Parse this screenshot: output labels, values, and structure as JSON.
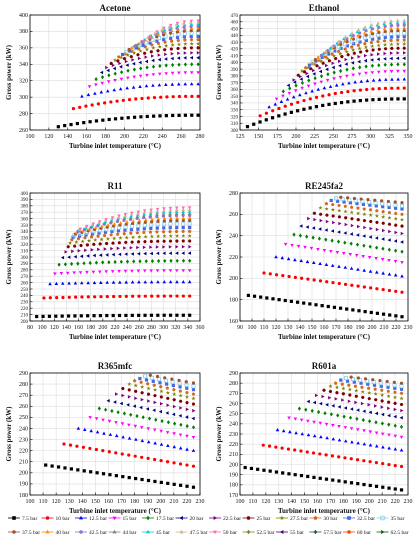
{
  "figure": {
    "xlabel": "Turbine inlet temperature (°C)",
    "ylabel": "Gross power (kW)"
  },
  "legend": {
    "entries": [
      {
        "label": "7.5 bar",
        "color": "#000000",
        "marker": "square"
      },
      {
        "label": "10 bar",
        "color": "#ff0000",
        "marker": "circle"
      },
      {
        "label": "12.5 bar",
        "color": "#0000ff",
        "marker": "triangle-up"
      },
      {
        "label": "15 bar",
        "color": "#ff00ff",
        "marker": "triangle-down"
      },
      {
        "label": "17.5 bar",
        "color": "#008000",
        "marker": "diamond"
      },
      {
        "label": "20 bar",
        "color": "#000080",
        "marker": "triangle-left"
      },
      {
        "label": "22.5 bar",
        "color": "#800080",
        "marker": "triangle-right"
      },
      {
        "label": "25 bar",
        "color": "#800000",
        "marker": "hexagon"
      },
      {
        "label": "27.5 bar",
        "color": "#808000",
        "marker": "star"
      },
      {
        "label": "30 bar",
        "color": "#d2691e",
        "marker": "pentagon"
      },
      {
        "label": "32.5 bar",
        "color": "#4169e1",
        "marker": "square"
      },
      {
        "label": "35 bar",
        "color": "#87ceeb",
        "marker": "square-open"
      },
      {
        "label": "37.5 bar",
        "color": "#a0522d",
        "marker": "circle"
      },
      {
        "label": "40 bar",
        "color": "#ff8c00",
        "marker": "triangle-up"
      },
      {
        "label": "42.5 bar",
        "color": "#9370db",
        "marker": "circle"
      },
      {
        "label": "44 bar",
        "color": "#808080",
        "marker": "triangle-up"
      },
      {
        "label": "45 bar",
        "color": "#00ced1",
        "marker": "triangle-up"
      },
      {
        "label": "47.5 bar",
        "color": "#d2b48c",
        "marker": "triangle-up"
      },
      {
        "label": "50 bar",
        "color": "#ff69b4",
        "marker": "triangle-down"
      },
      {
        "label": "52.5 bar",
        "color": "#6b8e23",
        "marker": "diamond"
      },
      {
        "label": "55 bar",
        "color": "#4b0082",
        "marker": "triangle-left"
      },
      {
        "label": "57.5 bar",
        "color": "#2f4f4f",
        "marker": "diamond"
      },
      {
        "label": "60 bar",
        "color": "#ff4500",
        "marker": "circle"
      },
      {
        "label": "62.5 bar",
        "color": "#006400",
        "marker": "triangle-right"
      }
    ]
  },
  "chart_data": [
    {
      "type": "scatter",
      "title": "Acetone",
      "xlabel": "Turbine inlet temperature (°C)",
      "ylabel": "Gross power (kW)",
      "xlim": [
        100,
        280
      ],
      "ylim": [
        260,
        400
      ],
      "xticks": [
        100,
        120,
        140,
        160,
        180,
        200,
        220,
        240,
        260,
        280
      ],
      "yticks": [
        260,
        280,
        300,
        320,
        340,
        360,
        380,
        400
      ],
      "series": [
        {
          "name": "7.5 bar",
          "x0": 130,
          "x1": 278,
          "y0": 264,
          "y1": 278
        },
        {
          "name": "10 bar",
          "x0": 146,
          "x1": 278,
          "y0": 286,
          "y1": 301
        },
        {
          "name": "12.5 bar",
          "x0": 155,
          "x1": 278,
          "y0": 301,
          "y1": 316
        },
        {
          "name": "15 bar",
          "x0": 163,
          "x1": 278,
          "y0": 313,
          "y1": 330
        },
        {
          "name": "17.5 bar",
          "x0": 170,
          "x1": 278,
          "y0": 322,
          "y1": 340
        },
        {
          "name": "20 bar",
          "x0": 176,
          "x1": 278,
          "y0": 330,
          "y1": 348
        },
        {
          "name": "22.5 bar",
          "x0": 181,
          "x1": 278,
          "y0": 336,
          "y1": 354
        },
        {
          "name": "25 bar",
          "x0": 186,
          "x1": 278,
          "y0": 341,
          "y1": 360
        },
        {
          "name": "27.5 bar",
          "x0": 190,
          "x1": 278,
          "y0": 345,
          "y1": 365
        },
        {
          "name": "30 bar",
          "x0": 194,
          "x1": 278,
          "y0": 349,
          "y1": 370
        },
        {
          "name": "32.5 bar",
          "x0": 198,
          "x1": 278,
          "y0": 352,
          "y1": 374
        },
        {
          "name": "35 bar",
          "x0": 202,
          "x1": 278,
          "y0": 355,
          "y1": 378
        },
        {
          "name": "37.5 bar",
          "x0": 205,
          "x1": 278,
          "y0": 358,
          "y1": 381
        },
        {
          "name": "40 bar",
          "x0": 208,
          "x1": 278,
          "y0": 360,
          "y1": 384
        },
        {
          "name": "42.5 bar",
          "x0": 211,
          "x1": 278,
          "y0": 362,
          "y1": 386
        },
        {
          "name": "45 bar",
          "x0": 214,
          "x1": 278,
          "y0": 364,
          "y1": 389
        },
        {
          "name": "47.5 bar",
          "x0": 217,
          "x1": 278,
          "y0": 366,
          "y1": 391
        },
        {
          "name": "50 bar",
          "x0": 220,
          "x1": 278,
          "y0": 368,
          "y1": 393
        }
      ]
    },
    {
      "type": "scatter",
      "title": "Ethanol",
      "xlabel": "Turbine inlet temperature (°C)",
      "ylabel": "Gross power (kW)",
      "xlim": [
        125,
        350
      ],
      "ylim": [
        300,
        470
      ],
      "xticks": [
        125,
        150,
        175,
        200,
        225,
        250,
        275,
        300,
        325,
        350
      ],
      "yticks": [
        300,
        310,
        320,
        330,
        340,
        350,
        360,
        370,
        380,
        390,
        400,
        410,
        420,
        430,
        440,
        450,
        460,
        470
      ],
      "series": [
        {
          "name": "7.5 bar",
          "x0": 135,
          "x1": 345,
          "y0": 305,
          "y1": 346
        },
        {
          "name": "10 bar",
          "x0": 152,
          "x1": 345,
          "y0": 321,
          "y1": 362
        },
        {
          "name": "12.5 bar",
          "x0": 164,
          "x1": 345,
          "y0": 334,
          "y1": 375
        },
        {
          "name": "15 bar",
          "x0": 174,
          "x1": 345,
          "y0": 346,
          "y1": 387
        },
        {
          "name": "17.5 bar",
          "x0": 183,
          "x1": 345,
          "y0": 357,
          "y1": 397
        },
        {
          "name": "20 bar",
          "x0": 190,
          "x1": 345,
          "y0": 366,
          "y1": 406
        },
        {
          "name": "22.5 bar",
          "x0": 197,
          "x1": 345,
          "y0": 374,
          "y1": 414
        },
        {
          "name": "25 bar",
          "x0": 203,
          "x1": 345,
          "y0": 381,
          "y1": 421
        },
        {
          "name": "27.5 bar",
          "x0": 208,
          "x1": 345,
          "y0": 387,
          "y1": 427
        },
        {
          "name": "30 bar",
          "x0": 213,
          "x1": 345,
          "y0": 392,
          "y1": 433
        },
        {
          "name": "32.5 bar",
          "x0": 218,
          "x1": 345,
          "y0": 396,
          "y1": 438
        },
        {
          "name": "35 bar",
          "x0": 222,
          "x1": 345,
          "y0": 400,
          "y1": 443
        },
        {
          "name": "37.5 bar",
          "x0": 226,
          "x1": 345,
          "y0": 404,
          "y1": 447
        },
        {
          "name": "40 bar",
          "x0": 230,
          "x1": 345,
          "y0": 407,
          "y1": 451
        },
        {
          "name": "42.5 bar",
          "x0": 234,
          "x1": 345,
          "y0": 410,
          "y1": 455
        },
        {
          "name": "45 bar",
          "x0": 237,
          "x1": 345,
          "y0": 413,
          "y1": 459
        },
        {
          "name": "47.5 bar",
          "x0": 240,
          "x1": 345,
          "y0": 416,
          "y1": 462
        }
      ]
    },
    {
      "type": "scatter",
      "title": "R11",
      "xlabel": "Turbine inlet temperature (°C)",
      "ylabel": "Gross power (kW)",
      "xlim": [
        80,
        360
      ],
      "ylim": [
        200,
        400
      ],
      "xticks": [
        80,
        100,
        120,
        140,
        160,
        180,
        200,
        220,
        240,
        260,
        280,
        300,
        320,
        340,
        360
      ],
      "yticks": [
        200,
        210,
        220,
        230,
        240,
        250,
        260,
        270,
        280,
        290,
        300,
        310,
        320,
        330,
        340,
        350,
        360,
        370,
        380,
        390,
        400
      ],
      "series": [
        {
          "name": "7.5 bar",
          "x0": 91,
          "x1": 343,
          "y0": 207,
          "y1": 209
        },
        {
          "name": "10 bar",
          "x0": 103,
          "x1": 343,
          "y0": 236,
          "y1": 239
        },
        {
          "name": "12.5 bar",
          "x0": 113,
          "x1": 343,
          "y0": 258,
          "y1": 261
        },
        {
          "name": "15 bar",
          "x0": 121,
          "x1": 343,
          "y0": 274,
          "y1": 279
        },
        {
          "name": "17.5 bar",
          "x0": 128,
          "x1": 343,
          "y0": 288,
          "y1": 294
        },
        {
          "name": "20 bar",
          "x0": 134,
          "x1": 343,
          "y0": 299,
          "y1": 306
        },
        {
          "name": "22.5 bar",
          "x0": 139,
          "x1": 343,
          "y0": 308,
          "y1": 316
        },
        {
          "name": "25 bar",
          "x0": 143,
          "x1": 343,
          "y0": 316,
          "y1": 325
        },
        {
          "name": "27.5 bar",
          "x0": 146,
          "x1": 343,
          "y0": 322,
          "y1": 333
        },
        {
          "name": "30 bar",
          "x0": 149,
          "x1": 343,
          "y0": 327,
          "y1": 340
        },
        {
          "name": "32.5 bar",
          "x0": 151,
          "x1": 343,
          "y0": 331,
          "y1": 346
        },
        {
          "name": "35 bar",
          "x0": 153,
          "x1": 343,
          "y0": 334,
          "y1": 352
        },
        {
          "name": "37.5 bar",
          "x0": 155,
          "x1": 343,
          "y0": 336,
          "y1": 357
        },
        {
          "name": "40 bar",
          "x0": 157,
          "x1": 343,
          "y0": 338,
          "y1": 361
        },
        {
          "name": "42.5 bar",
          "x0": 159,
          "x1": 343,
          "y0": 340,
          "y1": 365
        },
        {
          "name": "44 bar",
          "x0": 160,
          "x1": 343,
          "y0": 341,
          "y1": 368
        },
        {
          "name": "45 bar",
          "x0": 161,
          "x1": 343,
          "y0": 342,
          "y1": 371
        },
        {
          "name": "47.5 bar",
          "x0": 162,
          "x1": 343,
          "y0": 343,
          "y1": 374
        },
        {
          "name": "50 bar",
          "x0": 163,
          "x1": 343,
          "y0": 344,
          "y1": 377
        }
      ]
    },
    {
      "type": "scatter",
      "title": "RE245fa2",
      "xlabel": "Turbine inlet temperature (°C)",
      "ylabel": "Gross power (kW)",
      "xlim": [
        90,
        230
      ],
      "ylim": [
        160,
        280
      ],
      "xticks": [
        90,
        100,
        110,
        120,
        130,
        140,
        150,
        160,
        170,
        180,
        190,
        200,
        210,
        220,
        230
      ],
      "yticks": [
        160,
        180,
        200,
        220,
        240,
        260,
        280
      ],
      "series": [
        {
          "name": "7.5 bar",
          "x0": 97,
          "x1": 225,
          "y0": 184,
          "y1": 164
        },
        {
          "name": "10 bar",
          "x0": 110,
          "x1": 225,
          "y0": 205,
          "y1": 187
        },
        {
          "name": "12.5 bar",
          "x0": 120,
          "x1": 225,
          "y0": 220,
          "y1": 202
        },
        {
          "name": "15 bar",
          "x0": 128,
          "x1": 225,
          "y0": 232,
          "y1": 215
        },
        {
          "name": "17.5 bar",
          "x0": 135,
          "x1": 225,
          "y0": 241,
          "y1": 225
        },
        {
          "name": "20 bar",
          "x0": 141,
          "x1": 225,
          "y0": 249,
          "y1": 234
        },
        {
          "name": "22.5 bar",
          "x0": 147,
          "x1": 225,
          "y0": 256,
          "y1": 242
        },
        {
          "name": "25 bar",
          "x0": 152,
          "x1": 225,
          "y0": 261,
          "y1": 249
        },
        {
          "name": "27.5 bar",
          "x0": 157,
          "x1": 225,
          "y0": 266,
          "y1": 255
        },
        {
          "name": "30 bar",
          "x0": 162,
          "x1": 225,
          "y0": 270,
          "y1": 260
        },
        {
          "name": "32.5 bar",
          "x0": 166,
          "x1": 225,
          "y0": 273,
          "y1": 265
        },
        {
          "name": "35 bar",
          "x0": 170,
          "x1": 225,
          "y0": 275,
          "y1": 268
        },
        {
          "name": "37.5 bar",
          "x0": 174,
          "x1": 225,
          "y0": 276,
          "y1": 271
        }
      ]
    },
    {
      "type": "scatter",
      "title": "R365mfc",
      "xlabel": "Turbine inlet temperature (°C)",
      "ylabel": "Gross power (kW)",
      "xlim": [
        100,
        230
      ],
      "ylim": [
        180,
        290
      ],
      "xticks": [
        100,
        110,
        120,
        130,
        140,
        150,
        160,
        170,
        180,
        190,
        200,
        210,
        220,
        230
      ],
      "yticks": [
        180,
        190,
        200,
        210,
        220,
        230,
        240,
        250,
        260,
        270,
        280,
        290
      ],
      "series": [
        {
          "name": "7.5 bar",
          "x0": 112,
          "x1": 225,
          "y0": 207,
          "y1": 187
        },
        {
          "name": "10 bar",
          "x0": 126,
          "x1": 225,
          "y0": 226,
          "y1": 206
        },
        {
          "name": "12.5 bar",
          "x0": 137,
          "x1": 225,
          "y0": 240,
          "y1": 220
        },
        {
          "name": "15 bar",
          "x0": 146,
          "x1": 225,
          "y0": 250,
          "y1": 232
        },
        {
          "name": "17.5 bar",
          "x0": 153,
          "x1": 225,
          "y0": 258,
          "y1": 241
        },
        {
          "name": "20 bar",
          "x0": 160,
          "x1": 225,
          "y0": 265,
          "y1": 249
        },
        {
          "name": "22.5 bar",
          "x0": 166,
          "x1": 225,
          "y0": 271,
          "y1": 256
        },
        {
          "name": "25 bar",
          "x0": 171,
          "x1": 225,
          "y0": 276,
          "y1": 262
        },
        {
          "name": "27.5 bar",
          "x0": 176,
          "x1": 225,
          "y0": 280,
          "y1": 267
        },
        {
          "name": "30 bar",
          "x0": 180,
          "x1": 225,
          "y0": 283,
          "y1": 271
        },
        {
          "name": "32.5 bar",
          "x0": 184,
          "x1": 225,
          "y0": 285,
          "y1": 275
        },
        {
          "name": "35 bar",
          "x0": 188,
          "x1": 225,
          "y0": 287,
          "y1": 278
        },
        {
          "name": "37.5 bar",
          "x0": 192,
          "x1": 225,
          "y0": 288,
          "y1": 281
        }
      ]
    },
    {
      "type": "scatter",
      "title": "R601a",
      "xlabel": "Turbine inlet temperature (°C)",
      "ylabel": "Gross power (kW)",
      "xlim": [
        100,
        230
      ],
      "ylim": [
        170,
        290
      ],
      "xticks": [
        100,
        110,
        120,
        130,
        140,
        150,
        160,
        170,
        180,
        190,
        200,
        210,
        220,
        230
      ],
      "yticks": [
        170,
        180,
        190,
        200,
        210,
        220,
        230,
        240,
        250,
        260,
        270,
        280,
        290
      ],
      "series": [
        {
          "name": "7.5 bar",
          "x0": 104,
          "x1": 225,
          "y0": 197,
          "y1": 175
        },
        {
          "name": "10 bar",
          "x0": 118,
          "x1": 225,
          "y0": 219,
          "y1": 198
        },
        {
          "name": "12.5 bar",
          "x0": 129,
          "x1": 225,
          "y0": 234,
          "y1": 214
        },
        {
          "name": "15 bar",
          "x0": 138,
          "x1": 225,
          "y0": 246,
          "y1": 227
        },
        {
          "name": "17.5 bar",
          "x0": 146,
          "x1": 225,
          "y0": 255,
          "y1": 237
        },
        {
          "name": "20 bar",
          "x0": 153,
          "x1": 225,
          "y0": 262,
          "y1": 246
        },
        {
          "name": "22.5 bar",
          "x0": 159,
          "x1": 225,
          "y0": 268,
          "y1": 253
        },
        {
          "name": "25 bar",
          "x0": 165,
          "x1": 225,
          "y0": 273,
          "y1": 259
        },
        {
          "name": "27.5 bar",
          "x0": 170,
          "x1": 225,
          "y0": 277,
          "y1": 265
        },
        {
          "name": "30 bar",
          "x0": 174,
          "x1": 225,
          "y0": 280,
          "y1": 270
        },
        {
          "name": "32.5 bar",
          "x0": 178,
          "x1": 225,
          "y0": 283,
          "y1": 274
        },
        {
          "name": "35 bar",
          "x0": 182,
          "x1": 225,
          "y0": 285,
          "y1": 277
        },
        {
          "name": "37.5 bar",
          "x0": 186,
          "x1": 225,
          "y0": 286,
          "y1": 280
        }
      ]
    }
  ]
}
